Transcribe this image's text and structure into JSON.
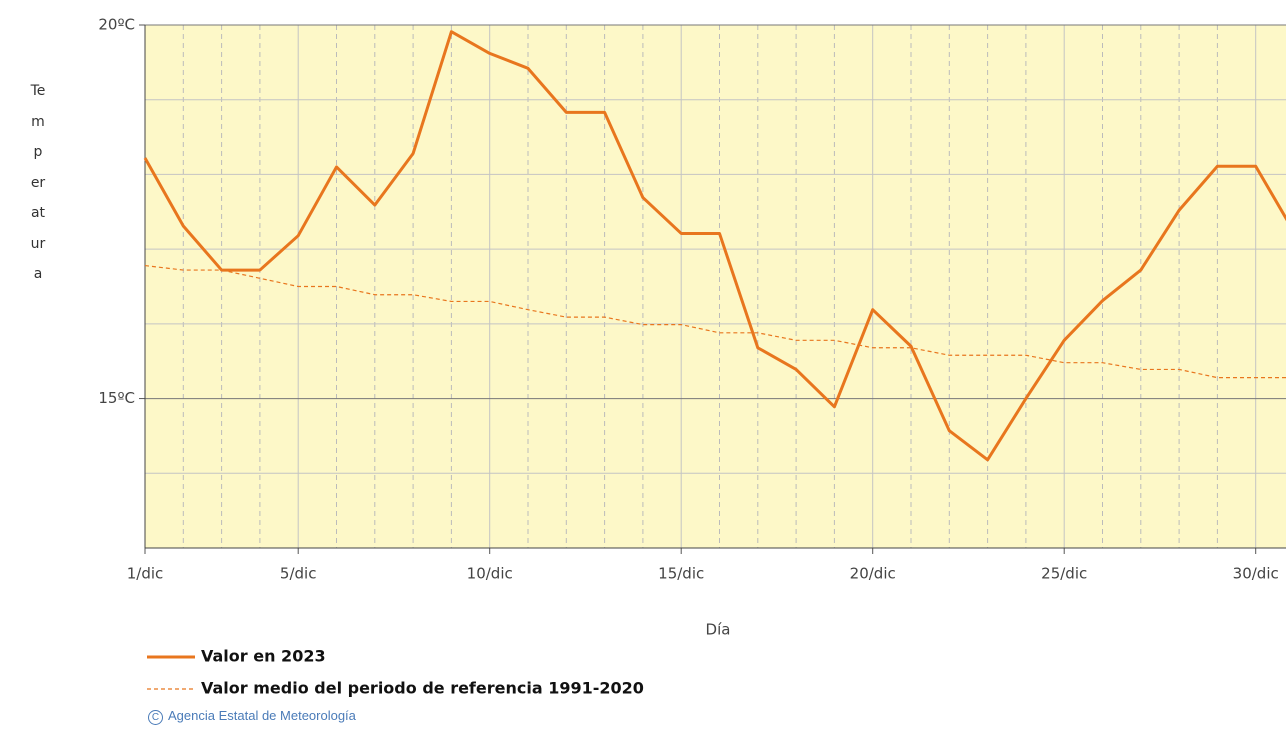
{
  "chart_data": {
    "type": "line",
    "ylabel": "Temperatura",
    "xlabel": "Día",
    "x": [
      1,
      2,
      3,
      4,
      5,
      6,
      7,
      8,
      9,
      10,
      11,
      12,
      13,
      14,
      15,
      16,
      17,
      18,
      19,
      20,
      21,
      22,
      23,
      24,
      25,
      26,
      27,
      28,
      29,
      30,
      31
    ],
    "series": [
      {
        "name": "Valor en 2023",
        "color": "#e8761e",
        "dashed": false,
        "values": [
          18.22,
          17.31,
          16.72,
          16.72,
          17.18,
          18.1,
          17.59,
          18.28,
          19.91,
          19.62,
          19.42,
          18.83,
          18.83,
          17.69,
          17.21,
          17.21,
          15.68,
          15.39,
          14.89,
          16.19,
          15.7,
          14.57,
          14.18,
          15.0,
          15.78,
          16.31,
          16.72,
          17.52,
          18.11,
          18.11,
          17.23
        ]
      },
      {
        "name": "Valor medio del periodo de referencia 1991-2020",
        "color": "#e8761e",
        "dashed": true,
        "values": [
          16.78,
          16.72,
          16.72,
          16.61,
          16.5,
          16.5,
          16.39,
          16.39,
          16.3,
          16.3,
          16.19,
          16.09,
          16.09,
          15.99,
          15.99,
          15.88,
          15.88,
          15.78,
          15.78,
          15.68,
          15.68,
          15.58,
          15.58,
          15.58,
          15.48,
          15.48,
          15.39,
          15.39,
          15.28,
          15.28,
          15.28
        ]
      }
    ],
    "xlim": [
      1,
      31
    ],
    "xticks": [
      {
        "value": 1,
        "label": "1/dic"
      },
      {
        "value": 5,
        "label": "5/dic"
      },
      {
        "value": 10,
        "label": "10/dic"
      },
      {
        "value": 15,
        "label": "15/dic"
      },
      {
        "value": 20,
        "label": "20/dic"
      },
      {
        "value": 25,
        "label": "25/dic"
      },
      {
        "value": 30,
        "label": "30/dic"
      }
    ],
    "xminor": [
      2,
      3,
      4,
      6,
      7,
      8,
      9,
      11,
      12,
      13,
      14,
      16,
      17,
      18,
      19,
      21,
      22,
      23,
      24,
      26,
      27,
      28,
      29,
      31
    ],
    "ylim": [
      13,
      20
    ],
    "yticks": [
      {
        "value": 15,
        "label": "15ºC"
      },
      {
        "value": 20,
        "label": "20ºC"
      }
    ],
    "yminor": [
      14,
      16,
      17,
      18,
      19
    ],
    "grid": true,
    "plot_background": "#fdf8c8",
    "source": "Agencia Estatal de Meteorología"
  }
}
